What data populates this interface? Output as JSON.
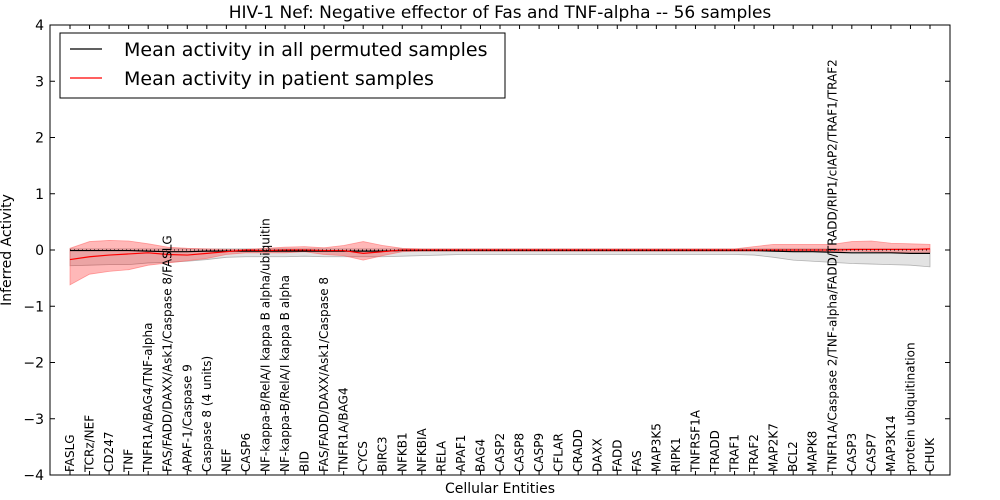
{
  "chart_data": {
    "type": "line",
    "title": "HIV-1 Nef: Negative effector of Fas and TNF-alpha -- 56 samples",
    "xlabel": "Cellular Entities",
    "ylabel": "Inferred Activity",
    "ylim": [
      -4,
      4
    ],
    "yticks": [
      "−4",
      "−3",
      "−2",
      "−1",
      "0",
      "1",
      "2",
      "3",
      "4"
    ],
    "grid": false,
    "legend_position": "top-left",
    "categories": [
      "FASLG",
      "TCRz/NEF",
      "CD247",
      "TNF",
      "TNFR1A/BAG4/TNF-alpha",
      "FAS/FADD/DAXX/Ask1/Caspase 8/FASLG",
      "APAF-1/Caspase 9",
      "Caspase 8 (4 units)",
      "NEF",
      "CASP6",
      "NF-kappa-B/RelA/I kappa B alpha/ubiquitin",
      "NF-kappa-B/RelA/I kappa B alpha",
      "BID",
      "FAS/FADD/DAXX/Ask1/Caspase 8",
      "TNFR1A/BAG4",
      "CYCS",
      "BIRC3",
      "NFKB1",
      "NFKBIA",
      "RELA",
      "APAF1",
      "BAG4",
      "CASP2",
      "CASP8",
      "CASP9",
      "CFLAR",
      "CRADD",
      "DAXX",
      "FADD",
      "FAS",
      "MAP3K5",
      "RIPK1",
      "TNFRSF1A",
      "TRADD",
      "TRAF1",
      "TRAF2",
      "MAP2K7",
      "BCL2",
      "MAPK8",
      "TNFR1A/Caspase 2/TNF-alpha/FADD/TRADD/RIP1/cIAP2/TRAF1/TRAF2",
      "CASP3",
      "CASP7",
      "MAP3K14",
      "protein ubiquitination",
      "CHUK"
    ],
    "series": [
      {
        "name": "Mean activity in all permuted samples",
        "color": "#000000",
        "values": [
          -0.01,
          -0.01,
          -0.01,
          -0.01,
          -0.02,
          -0.03,
          -0.03,
          -0.02,
          -0.02,
          -0.02,
          -0.02,
          -0.02,
          -0.02,
          -0.02,
          -0.02,
          -0.02,
          -0.02,
          -0.01,
          -0.01,
          -0.01,
          -0.01,
          -0.01,
          -0.01,
          -0.01,
          -0.01,
          -0.01,
          -0.01,
          -0.01,
          -0.01,
          -0.01,
          -0.01,
          -0.01,
          -0.01,
          -0.01,
          -0.01,
          -0.01,
          -0.02,
          -0.03,
          -0.03,
          -0.04,
          -0.05,
          -0.05,
          -0.05,
          -0.06,
          -0.06
        ],
        "band_upper": [
          0.02,
          0.02,
          0.02,
          0.02,
          0.02,
          0.02,
          0.02,
          0.02,
          0.02,
          0.02,
          0.02,
          0.02,
          0.02,
          0.02,
          0.02,
          0.02,
          0.02,
          0.02,
          0.02,
          0.02,
          0.02,
          0.02,
          0.02,
          0.02,
          0.02,
          0.02,
          0.02,
          0.02,
          0.02,
          0.02,
          0.02,
          0.02,
          0.02,
          0.02,
          0.02,
          0.02,
          0.02,
          0.02,
          0.02,
          0.02,
          0.02,
          0.02,
          0.02,
          0.02,
          0.02
        ],
        "band_lower": [
          -0.28,
          -0.27,
          -0.26,
          -0.26,
          -0.23,
          -0.22,
          -0.2,
          -0.17,
          -0.13,
          -0.12,
          -0.12,
          -0.12,
          -0.11,
          -0.12,
          -0.12,
          -0.12,
          -0.12,
          -0.11,
          -0.1,
          -0.09,
          -0.08,
          -0.08,
          -0.08,
          -0.08,
          -0.08,
          -0.08,
          -0.08,
          -0.08,
          -0.08,
          -0.08,
          -0.08,
          -0.08,
          -0.08,
          -0.08,
          -0.08,
          -0.09,
          -0.13,
          -0.18,
          -0.2,
          -0.22,
          -0.24,
          -0.25,
          -0.26,
          -0.27,
          -0.3
        ]
      },
      {
        "name": "Mean activity in patient samples",
        "color": "#ff0000",
        "values": [
          -0.17,
          -0.12,
          -0.09,
          -0.07,
          -0.05,
          -0.08,
          -0.09,
          -0.06,
          -0.03,
          0.0,
          -0.01,
          0.0,
          0.0,
          -0.01,
          -0.01,
          -0.06,
          -0.03,
          0.0,
          0.0,
          0.0,
          0.0,
          0.0,
          0.0,
          0.0,
          0.0,
          0.0,
          0.0,
          0.0,
          0.0,
          0.0,
          0.0,
          0.0,
          0.0,
          0.0,
          0.0,
          0.0,
          0.0,
          0.0,
          0.0,
          0.0,
          0.01,
          0.01,
          0.01,
          0.01,
          0.02
        ],
        "band_upper": [
          0.03,
          0.15,
          0.17,
          0.16,
          0.11,
          0.05,
          0.03,
          0.02,
          0.01,
          0.01,
          0.03,
          0.05,
          0.06,
          0.04,
          0.08,
          0.15,
          0.08,
          0.03,
          0.02,
          0.02,
          0.02,
          0.02,
          0.02,
          0.02,
          0.02,
          0.02,
          0.02,
          0.02,
          0.02,
          0.02,
          0.02,
          0.02,
          0.02,
          0.02,
          0.02,
          0.06,
          0.1,
          0.1,
          0.1,
          0.1,
          0.15,
          0.16,
          0.12,
          0.11,
          0.1
        ],
        "band_lower": [
          -0.62,
          -0.43,
          -0.38,
          -0.35,
          -0.27,
          -0.23,
          -0.19,
          -0.15,
          -0.08,
          -0.05,
          -0.05,
          -0.05,
          -0.03,
          -0.08,
          -0.1,
          -0.18,
          -0.1,
          -0.03,
          -0.02,
          -0.02,
          -0.02,
          -0.02,
          -0.02,
          -0.02,
          -0.02,
          -0.02,
          -0.02,
          -0.02,
          -0.02,
          -0.02,
          -0.02,
          -0.02,
          -0.02,
          -0.02,
          -0.02,
          -0.02,
          -0.02,
          -0.02,
          -0.02,
          -0.03,
          -0.02,
          -0.03,
          -0.04,
          -0.04,
          -0.04
        ]
      }
    ],
    "reference_line": {
      "y": 0,
      "style": "dotted",
      "color": "#000000"
    }
  }
}
